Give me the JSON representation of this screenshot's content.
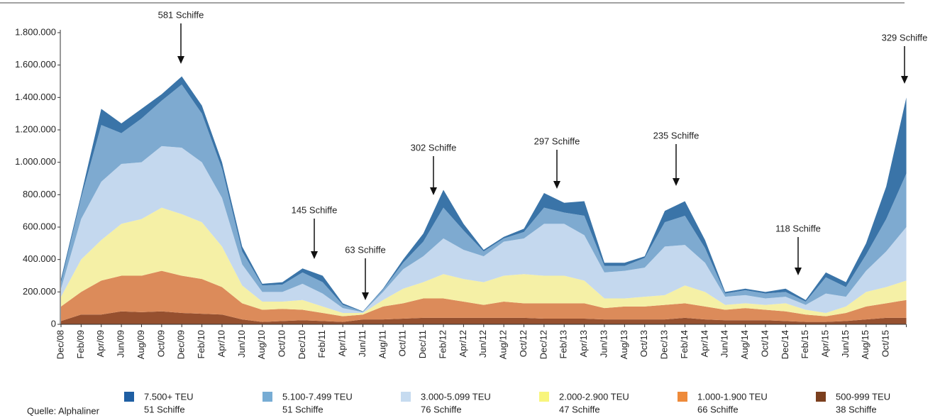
{
  "chart_data": {
    "type": "stacked_area",
    "categories": [
      "Dec/08",
      "Feb/09",
      "Apr/09",
      "Jun/09",
      "Aug/09",
      "Oct/09",
      "Dec/09",
      "Feb/10",
      "Apr/10",
      "Jun/10",
      "Aug/10",
      "Oct/10",
      "Dec/10",
      "Feb/11",
      "Apr/11",
      "Jun/11",
      "Aug/11",
      "Oct/11",
      "Dec/11",
      "Feb/12",
      "Apr/12",
      "Jun/12",
      "Aug/12",
      "Oct/12",
      "Dec/12",
      "Feb/13",
      "Apr/13",
      "Jun/13",
      "Aug/13",
      "Oct/13",
      "Dec/13",
      "Feb/14",
      "Apr/14",
      "Jun/14",
      "Aug/14",
      "Oct/14",
      "Dec/14",
      "Feb/15",
      "Apr/15",
      "Jun/15",
      "Aug/15",
      "Oct/15",
      null
    ],
    "series": [
      {
        "name": "7.500+ TEU",
        "count": "51 Schiffe",
        "color": "#3a74a8",
        "legend_color": "#1f5fa3",
        "values": [
          20000,
          20000,
          100000,
          60000,
          60000,
          40000,
          50000,
          50000,
          40000,
          30000,
          10000,
          15000,
          25000,
          40000,
          10000,
          2000,
          5000,
          20000,
          50000,
          110000,
          40000,
          10000,
          10000,
          20000,
          90000,
          60000,
          90000,
          20000,
          20000,
          10000,
          70000,
          90000,
          50000,
          10000,
          10000,
          10000,
          20000,
          10000,
          30000,
          30000,
          70000,
          200000,
          470000
        ]
      },
      {
        "name": "5.100-7.499 TEU",
        "count": "51 Schiffe",
        "color": "#7eaad0",
        "legend_color": "#77acd4",
        "values": [
          40000,
          130000,
          350000,
          190000,
          270000,
          280000,
          390000,
          300000,
          180000,
          80000,
          40000,
          45000,
          70000,
          70000,
          20000,
          3000,
          15000,
          40000,
          90000,
          190000,
          120000,
          30000,
          20000,
          40000,
          100000,
          70000,
          120000,
          40000,
          30000,
          60000,
          150000,
          180000,
          90000,
          20000,
          30000,
          30000,
          30000,
          20000,
          100000,
          60000,
          100000,
          200000,
          330000
        ]
      },
      {
        "name": "3.000-5.099 TEU",
        "count": "76 Schiffe",
        "color": "#c4d8ee",
        "legend_color": "#c6dbf0",
        "values": [
          50000,
          250000,
          360000,
          370000,
          350000,
          380000,
          410000,
          370000,
          300000,
          130000,
          60000,
          60000,
          100000,
          80000,
          30000,
          5000,
          50000,
          120000,
          160000,
          220000,
          180000,
          160000,
          210000,
          220000,
          320000,
          320000,
          280000,
          160000,
          170000,
          180000,
          300000,
          250000,
          180000,
          50000,
          50000,
          40000,
          40000,
          30000,
          120000,
          60000,
          130000,
          220000,
          330000
        ]
      },
      {
        "name": "2.000-2.900 TEU",
        "count": "47 Schiffe",
        "color": "#f5f0a6",
        "legend_color": "#f8f57c",
        "values": [
          60000,
          200000,
          250000,
          320000,
          350000,
          390000,
          380000,
          350000,
          250000,
          110000,
          50000,
          45000,
          60000,
          40000,
          20000,
          10000,
          40000,
          90000,
          100000,
          150000,
          140000,
          140000,
          160000,
          180000,
          170000,
          170000,
          140000,
          60000,
          50000,
          60000,
          60000,
          110000,
          90000,
          30000,
          30000,
          30000,
          50000,
          30000,
          20000,
          40000,
          90000,
          100000,
          120000
        ]
      },
      {
        "name": "1.000-1.900 TEU",
        "count": "66 Schiffe",
        "color": "#dc8b5a",
        "legend_color": "#ee8a3a",
        "values": [
          90000,
          140000,
          210000,
          220000,
          225000,
          250000,
          230000,
          215000,
          170000,
          100000,
          75000,
          75000,
          65000,
          50000,
          35000,
          30000,
          80000,
          95000,
          120000,
          120000,
          100000,
          80000,
          100000,
          90000,
          95000,
          95000,
          95000,
          70000,
          80000,
          80000,
          90000,
          90000,
          80000,
          65000,
          75000,
          65000,
          60000,
          45000,
          35000,
          50000,
          80000,
          90000,
          110000
        ]
      },
      {
        "name": "500-999 TEU",
        "count": "38 Schiffe",
        "color": "#96502f",
        "legend_color": "#7b3f1e",
        "values": [
          20000,
          60000,
          60000,
          80000,
          75000,
          80000,
          70000,
          65000,
          60000,
          30000,
          15000,
          20000,
          25000,
          20000,
          15000,
          30000,
          30000,
          35000,
          40000,
          40000,
          40000,
          40000,
          40000,
          40000,
          35000,
          35000,
          35000,
          30000,
          30000,
          30000,
          30000,
          40000,
          30000,
          25000,
          25000,
          25000,
          20000,
          15000,
          15000,
          20000,
          30000,
          40000,
          40000
        ]
      }
    ],
    "ylim": [
      0,
      1800000
    ],
    "yticks": [
      0,
      {
        "value": 200000,
        "label": "200.000"
      },
      {
        "value": 400000,
        "label": "400.000"
      },
      {
        "value": 600000,
        "label": "600.000"
      },
      {
        "value": 800000,
        "label": "800.000"
      },
      {
        "value": 1000000,
        "label": "1.000.000"
      },
      {
        "value": 1200000,
        "label": "1.200.000"
      },
      {
        "value": 1400000,
        "label": "1.400.000"
      },
      {
        "value": 1600000,
        "label": "1.600.000"
      },
      {
        "value": 1800000,
        "label": "1.800.000"
      }
    ],
    "annotations": [
      "581 Schiffe",
      "145 Schiffe",
      "63 Schiffe",
      "302 Schiffe",
      "297 Schiffe",
      "235 Schiffe",
      "118 Schiffe",
      "329 Schiffe"
    ],
    "source": "Quelle: Alphaliner"
  }
}
